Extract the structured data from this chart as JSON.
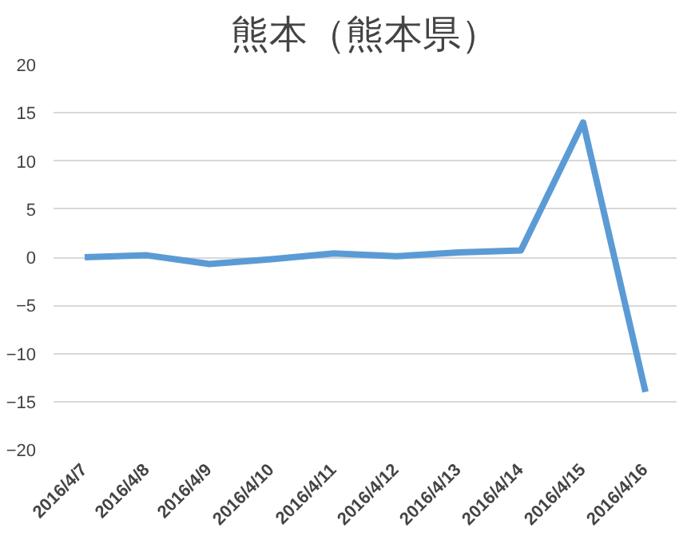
{
  "chart_data": {
    "type": "line",
    "title": "熊本（熊本県）",
    "categories": [
      "2016/4/7",
      "2016/4/8",
      "2016/4/9",
      "2016/4/10",
      "2016/4/11",
      "2016/4/12",
      "2016/4/13",
      "2016/4/14",
      "2016/4/15",
      "2016/4/16"
    ],
    "series": [
      {
        "color": "#5b9bd5",
        "values": [
          0,
          0.2,
          -0.7,
          -0.2,
          0.4,
          0.1,
          0.5,
          0.7,
          14,
          -14
        ]
      }
    ],
    "ylim": [
      -20,
      20
    ],
    "yticks": [
      -20,
      -15,
      -10,
      -5,
      0,
      5,
      10,
      15,
      20
    ],
    "grid": "y",
    "marker": "none",
    "line_style": "solid"
  }
}
